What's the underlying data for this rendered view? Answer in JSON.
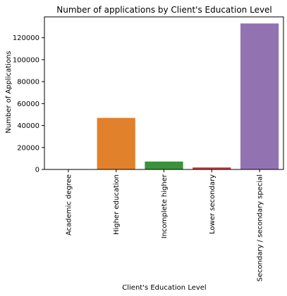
{
  "chart_data": {
    "type": "bar",
    "title": "Number of applications by Client's Education Level",
    "xlabel": "Client's Education Level",
    "ylabel": "Number of Applications",
    "categories": [
      "Academic degree",
      "Higher education",
      "Incomplete higher",
      "Lower secondary",
      "Secondary / secondary special"
    ],
    "values": [
      160,
      47000,
      7200,
      1800,
      133000
    ],
    "colors": [
      "#3a6ea5",
      "#e1812c",
      "#3a923a",
      "#c03d3e",
      "#9372b2"
    ],
    "ylim": [
      0,
      139000
    ],
    "yticks": [
      0,
      20000,
      40000,
      60000,
      80000,
      100000,
      120000
    ],
    "ytick_labels": [
      "0",
      "20000",
      "40000",
      "60000",
      "80000",
      "100000",
      "120000"
    ],
    "grid": false
  }
}
